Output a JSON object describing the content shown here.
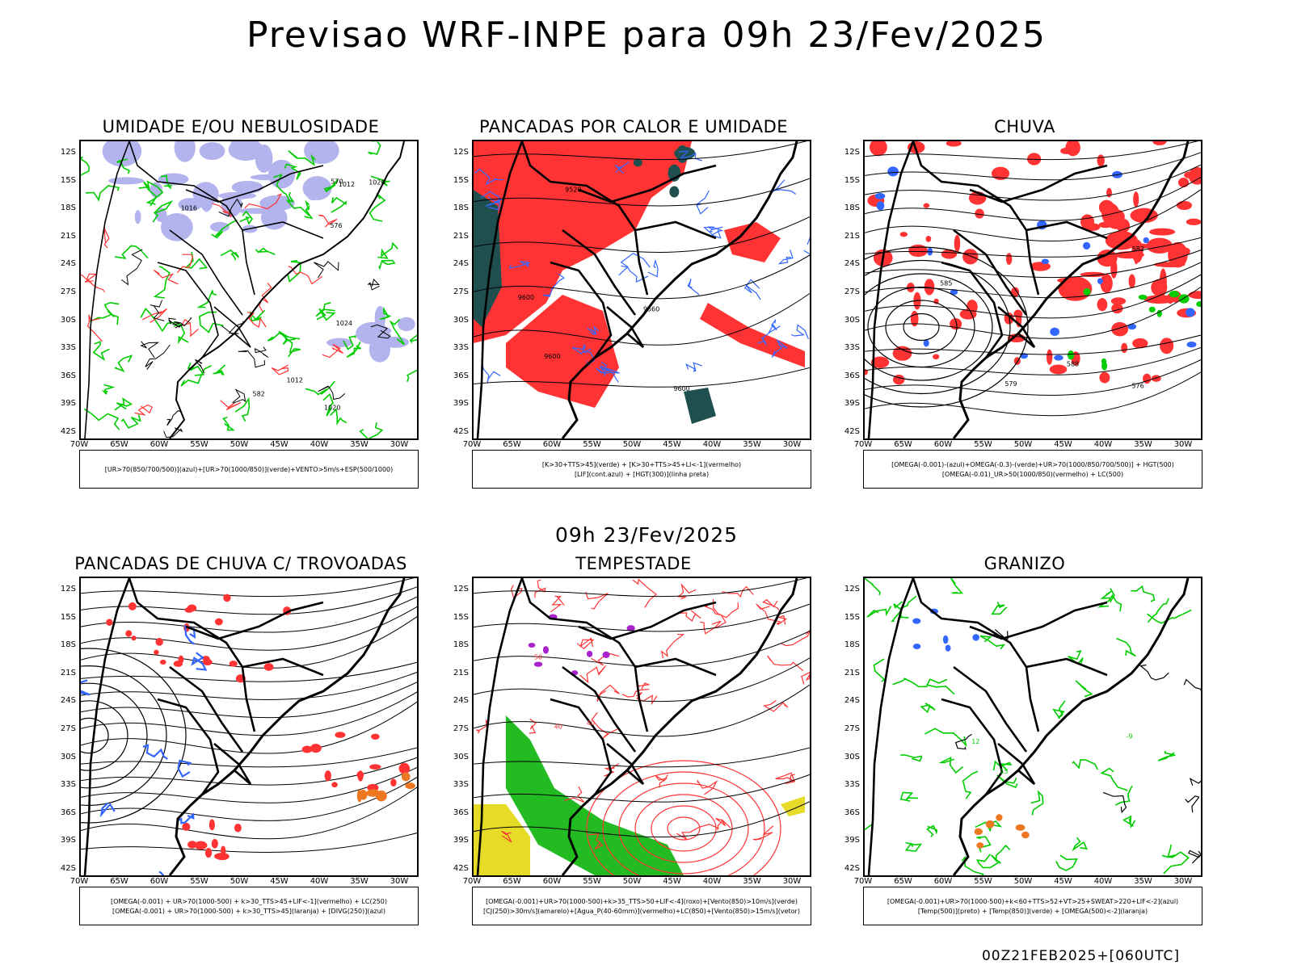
{
  "header": {
    "title": "Previsao WRF-INPE  para 09h 23/Fev/2025"
  },
  "middle": {
    "title": "09h 23/Fev/2025"
  },
  "footer": {
    "run": "00Z21FEB2025+[060UTC]"
  },
  "axes": {
    "lat_labels": [
      "12S",
      "15S",
      "18S",
      "21S",
      "24S",
      "27S",
      "30S",
      "33S",
      "36S",
      "39S",
      "42S"
    ],
    "lon_labels": [
      "70W",
      "65W",
      "60W",
      "55W",
      "50W",
      "45W",
      "40W",
      "35W",
      "30W"
    ]
  },
  "colors": {
    "humidity_blue": "#b3b3ee",
    "green": "#00cc00",
    "red": "#ff3333",
    "dark_teal": "#1f4f4f",
    "blue": "#3366ff",
    "orange": "#ee7722",
    "yellow": "#e6dc28",
    "purple": "#aa22cc",
    "black": "#000000"
  },
  "panels": [
    {
      "title": "UMIDADE E/OU NEBULOSIDADE",
      "legend": [
        "[UR>70(850/700/500)](azul)+[UR>70(1000/850)](verde)+VENTO>5m/s+ESP(500/1000)"
      ],
      "contour_labels": [
        "1012",
        "1016",
        "1020",
        "1024",
        "576",
        "582",
        "570",
        "1020",
        "1012"
      ]
    },
    {
      "title": "PANCADAS POR CALOR E UMIDADE",
      "legend": [
        "[K>30+TTS>45](verde) + [K>30+TTS>45+LI<-1](vermelho)",
        "[LIF](cont.azul) + [HGT(300)](linha preta)"
      ],
      "contour_labels": [
        "9600",
        "9600",
        "9560",
        "9600",
        "9520"
      ]
    },
    {
      "title": "CHUVA",
      "legend": [
        "[OMEGA(-0.001)-(azul)+OMEGA(-0.3)-(verde)+UR>70(1000/850/700/500)] + HGT(500)",
        "[OMEGA(-0.01)_UR>50(1000/850)(vermelho) + LC(500)"
      ],
      "contour_labels": [
        "588",
        "585",
        "582",
        "579",
        "576"
      ]
    },
    {
      "title": "PANCADAS DE CHUVA C/ TROVOADAS",
      "legend": [
        "[OMEGA(-0.001) + UR>70(1000-500) + k>30_TTS>45+LIF<-1](vermelho) + LC(250)",
        "[OMEGA(-0.001) + UR>70(1000-500) + k>30_TTS>45](laranja) + [DIVG(250)](azul)"
      ],
      "contour_labels": []
    },
    {
      "title": "TEMPESTADE",
      "legend": [
        "[OMEGA(-0.001)+UR>70(1000-500)+k>35_TTS>50+LIF<-4](roxo)+[Vento(850)>10m/s](verde)",
        "[CJ(250)>30m/s](amarelo)+[Agua_P(40-60mm)](vermelho)+LC(850)+[Vento(850)>15m/s](vetor)"
      ],
      "contour_labels": [
        "40",
        "40",
        "50"
      ]
    },
    {
      "title": "GRANIZO",
      "legend": [
        "[OMEGA(-0.001)+UR>70(1000-500)+k<60+TTS>52+VT>25+SWEAT>220+LIF<-2](azul)",
        "[Temp(500)](preto) + [Temp(850)](verde) + [OMEGA(500)<-2](laranja)"
      ],
      "contour_labels": [
        "15",
        "12",
        "-9"
      ]
    }
  ]
}
